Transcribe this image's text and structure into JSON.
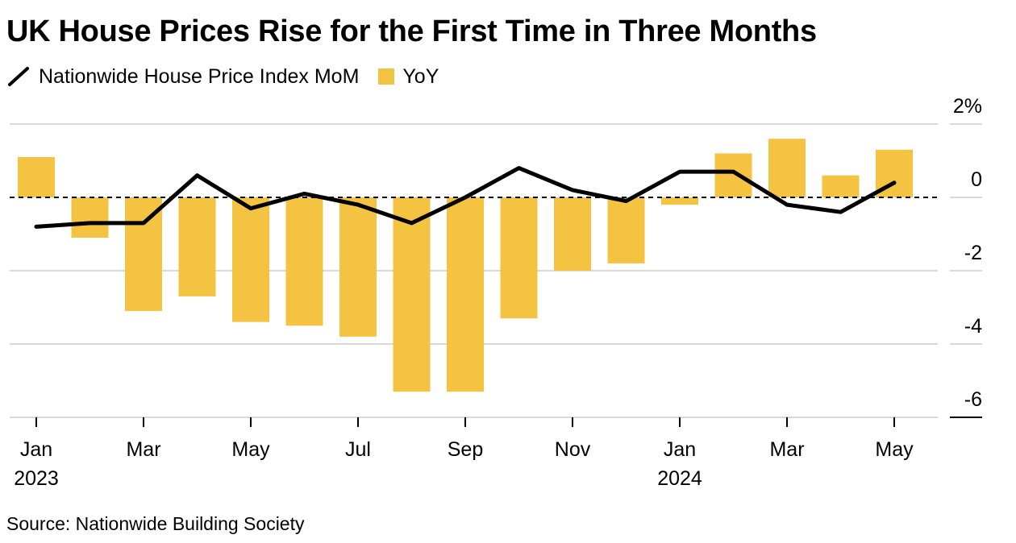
{
  "chart_data": {
    "type": "bar",
    "title": "UK House Prices Rise for the First Time in Three Months",
    "source": "Source: Nationwide Building Society",
    "legend_placement": "top-left",
    "grid": true,
    "categories": [
      "Jan 2023",
      "Feb 2023",
      "Mar 2023",
      "Apr 2023",
      "May 2023",
      "Jun 2023",
      "Jul 2023",
      "Aug 2023",
      "Sep 2023",
      "Oct 2023",
      "Nov 2023",
      "Dec 2023",
      "Jan 2024",
      "Feb 2024",
      "Mar 2024",
      "Apr 2024",
      "May 2024"
    ],
    "series": [
      {
        "name": "Nationwide House Price Index MoM",
        "kind": "line",
        "color": "#000000",
        "values": [
          -0.8,
          -0.7,
          -0.7,
          0.6,
          -0.3,
          0.1,
          -0.2,
          -0.7,
          0.0,
          0.8,
          0.2,
          -0.1,
          0.7,
          0.7,
          -0.2,
          -0.4,
          0.4
        ]
      },
      {
        "name": "YoY",
        "kind": "bar",
        "color": "#f5c342",
        "values": [
          1.1,
          -1.1,
          -3.1,
          -2.7,
          -3.4,
          -3.5,
          -3.8,
          -5.3,
          -5.3,
          -3.3,
          -2.0,
          -1.8,
          -0.2,
          1.2,
          1.6,
          0.6,
          1.3
        ]
      }
    ],
    "x_ticks": [
      {
        "index": 0,
        "label": "Jan",
        "year": "2023"
      },
      {
        "index": 2,
        "label": "Mar",
        "year": ""
      },
      {
        "index": 4,
        "label": "May",
        "year": ""
      },
      {
        "index": 6,
        "label": "Jul",
        "year": ""
      },
      {
        "index": 8,
        "label": "Sep",
        "year": ""
      },
      {
        "index": 10,
        "label": "Nov",
        "year": ""
      },
      {
        "index": 12,
        "label": "Jan",
        "year": "2024"
      },
      {
        "index": 14,
        "label": "Mar",
        "year": ""
      },
      {
        "index": 16,
        "label": "May",
        "year": ""
      }
    ],
    "y_ticks": [
      {
        "value": 2,
        "label": "2%"
      },
      {
        "value": 0,
        "label": "0"
      },
      {
        "value": -2,
        "label": "-2"
      },
      {
        "value": -4,
        "label": "-4"
      },
      {
        "value": -6,
        "label": "-6"
      }
    ],
    "ylim": [
      -6,
      2
    ],
    "axis": "right"
  },
  "legend": {
    "line_label": "Nationwide House Price Index MoM",
    "bar_label": "YoY"
  }
}
